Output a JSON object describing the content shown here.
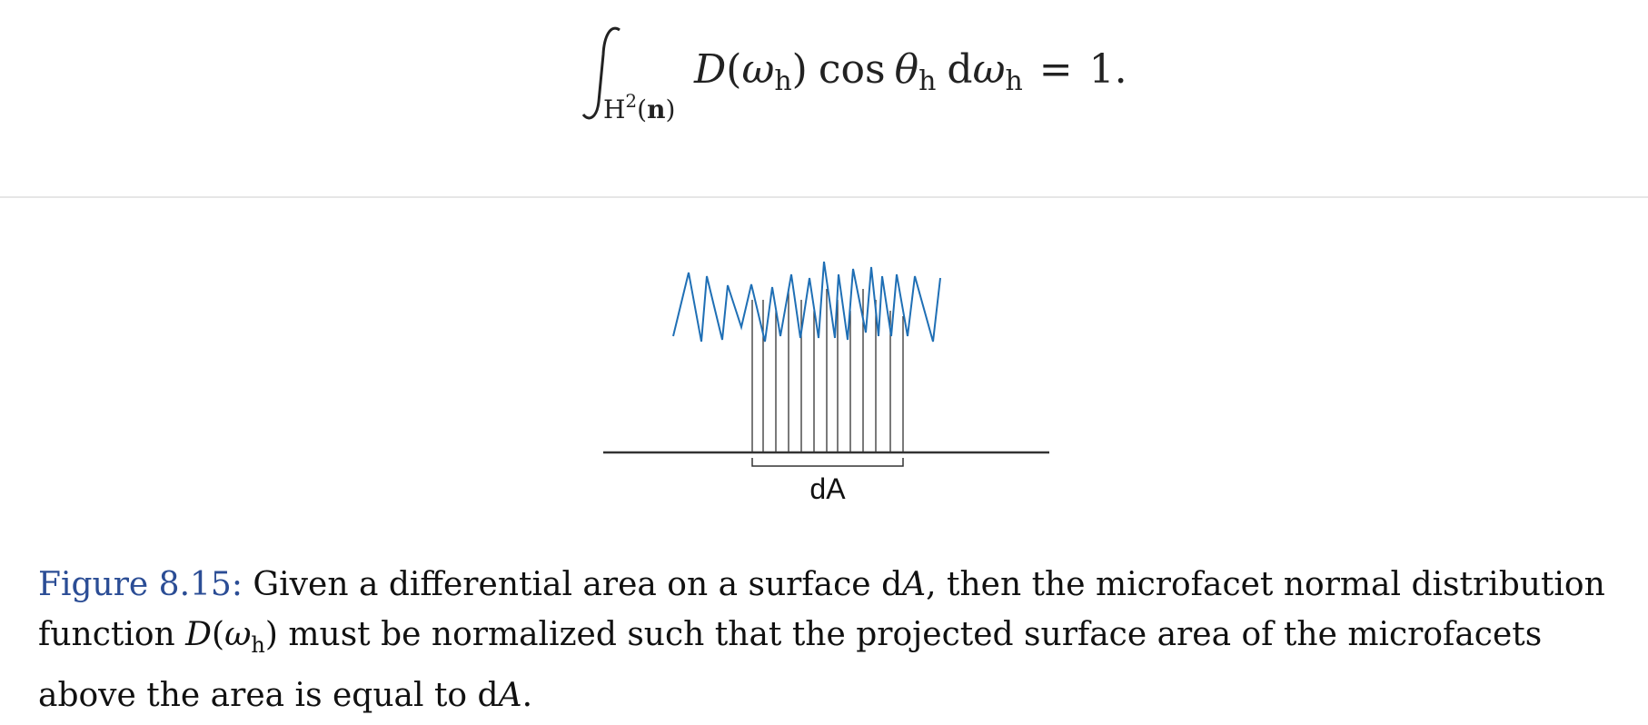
{
  "equation": {
    "D": "D",
    "open_paren": "(",
    "omega": "ω",
    "sub_h": "h",
    "close_paren": ")",
    "cos": "cos",
    "theta": "θ",
    "d": "d",
    "equals": "=",
    "one": "1.",
    "domain_H": "H",
    "domain_sup": "2",
    "domain_open": "(",
    "domain_n": "n",
    "domain_close": ")"
  },
  "figure": {
    "area_label": "dA",
    "colors": {
      "microfacets": "#1f6fb5",
      "lines": "#333333"
    }
  },
  "caption": {
    "label": "Figure 8.15:",
    "part1": " Given a differential area on a surface ",
    "dA_d": "d",
    "dA_A": "A",
    "part2": ", then the microfacet normal distribution function ",
    "D": "D",
    "paren_open": "(",
    "omega": "ω",
    "sub_h": "h",
    "paren_close": ")",
    "part3": " must be normalized such that the projected surface area of the microfacets above the area is equal to ",
    "end": "."
  }
}
